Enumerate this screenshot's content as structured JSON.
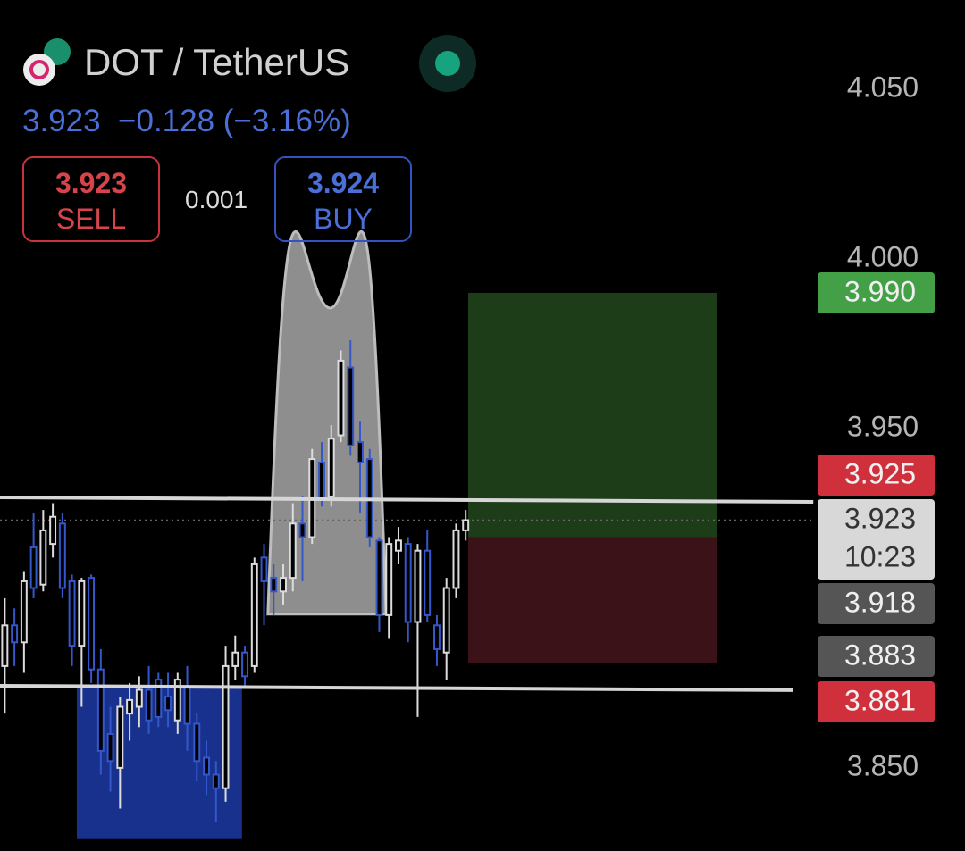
{
  "header": {
    "symbol": "DOT / TetherUS",
    "price": "3.923",
    "change": "−0.128 (−3.16%)",
    "sell_price": "3.923",
    "sell_label": "SELL",
    "spread": "0.001",
    "buy_price": "3.924",
    "buy_label": "BUY"
  },
  "chart_data": {
    "type": "candlestick",
    "x": [
      0,
      1,
      2,
      3,
      4,
      5,
      6,
      7,
      8,
      9,
      10,
      11,
      12,
      13,
      14,
      15,
      16,
      17,
      18,
      19,
      20,
      21,
      22,
      23,
      24,
      25,
      26,
      27,
      28,
      29,
      30,
      31,
      32,
      33,
      34,
      35,
      36,
      37,
      38,
      39,
      40,
      41,
      42,
      43,
      44,
      45,
      46,
      47,
      48
    ],
    "open": [
      3.88,
      3.892,
      3.887,
      3.915,
      3.904,
      3.916,
      3.922,
      3.905,
      3.886,
      3.906,
      3.879,
      3.86,
      3.85,
      3.866,
      3.868,
      3.873,
      3.876,
      3.871,
      3.864,
      3.874,
      3.863,
      3.853,
      3.848,
      3.844,
      3.88,
      3.884,
      3.88,
      3.912,
      3.906,
      3.902,
      3.906,
      3.922,
      3.918,
      3.94,
      3.93,
      3.948,
      3.968,
      3.946,
      3.941,
      3.917,
      3.895,
      3.914,
      3.916,
      3.893,
      3.914,
      3.892,
      3.884,
      3.903,
      3.92
    ],
    "high": [
      3.9,
      3.897,
      3.908,
      3.925,
      3.926,
      3.928,
      3.925,
      3.907,
      3.906,
      3.907,
      3.885,
      3.868,
      3.871,
      3.875,
      3.877,
      3.88,
      3.878,
      3.878,
      3.878,
      3.88,
      3.866,
      3.858,
      3.852,
      3.886,
      3.889,
      3.886,
      3.912,
      3.916,
      3.91,
      3.91,
      3.928,
      3.93,
      3.944,
      3.946,
      3.951,
      3.973,
      3.976,
      3.952,
      3.944,
      3.918,
      3.918,
      3.921,
      3.918,
      3.916,
      3.92,
      3.895,
      3.906,
      3.922,
      3.926
    ],
    "low": [
      3.866,
      3.88,
      3.878,
      3.9,
      3.902,
      3.912,
      3.9,
      3.88,
      3.868,
      3.875,
      3.848,
      3.843,
      3.838,
      3.858,
      3.862,
      3.86,
      3.862,
      3.862,
      3.86,
      3.855,
      3.846,
      3.842,
      3.834,
      3.84,
      3.876,
      3.874,
      3.878,
      3.892,
      3.895,
      3.898,
      3.902,
      3.905,
      3.916,
      3.927,
      3.927,
      3.946,
      3.942,
      3.925,
      3.915,
      3.89,
      3.888,
      3.91,
      3.887,
      3.865,
      3.893,
      3.88,
      3.876,
      3.9,
      3.917
    ],
    "close": [
      3.892,
      3.887,
      3.905,
      3.903,
      3.92,
      3.924,
      3.903,
      3.886,
      3.905,
      3.879,
      3.855,
      3.852,
      3.868,
      3.87,
      3.873,
      3.864,
      3.865,
      3.867,
      3.876,
      3.863,
      3.852,
      3.848,
      3.844,
      3.88,
      3.884,
      3.877,
      3.91,
      3.905,
      3.902,
      3.906,
      3.922,
      3.918,
      3.941,
      3.929,
      3.947,
      3.97,
      3.945,
      3.94,
      3.918,
      3.895,
      3.916,
      3.917,
      3.893,
      3.914,
      3.895,
      3.885,
      3.903,
      3.92,
      3.923
    ],
    "up_color": "#dcdcdc",
    "down_color": "#3457c9",
    "xlim": [
      -0.5,
      100
    ],
    "ylim": [
      3.8255,
      4.0763
    ],
    "yticks": [
      {
        "value": 3.85,
        "label": "3.850"
      },
      {
        "value": 3.95,
        "label": "3.950"
      },
      {
        "value": 4.0,
        "label": "4.000"
      },
      {
        "value": 4.05,
        "label": "4.050"
      }
    ],
    "lines": [
      {
        "x": [
          -0.5,
          84.2
        ],
        "values": [
          3.9297,
          3.9284
        ]
      },
      {
        "x": [
          -0.5,
          82.1
        ],
        "values": [
          3.8742,
          3.8729
        ]
      }
    ],
    "zone": {
      "x": [
        7.5,
        24.7
      ],
      "values": [
        3.874,
        3.829
      ],
      "color": "#1c3aa6"
    },
    "arc": {
      "x": [
        27.4,
        33.9,
        39.7
      ],
      "values": [
        3.8953,
        3.9855,
        3.8953
      ],
      "color": "#bdbdbd"
    },
    "position": {
      "x": [
        48.26,
        74.2
      ],
      "target": 3.99,
      "entry": 3.918,
      "stop": 3.881,
      "profit_color": "#1d3d19",
      "loss_color": "#3a1217"
    },
    "price_tags": [
      {
        "value": 3.99,
        "label": "3.990",
        "color": "#43a047"
      },
      {
        "value": 3.925,
        "label": "3.925",
        "color": "#d0303c"
      },
      {
        "value": 3.923,
        "label": "3.923",
        "color": "#d8d8d8",
        "countdown": "10:23"
      },
      {
        "value": 3.918,
        "label": "3.918",
        "color": "#555555"
      },
      {
        "value": 3.883,
        "label": "3.883",
        "color": "#555555"
      },
      {
        "value": 3.881,
        "label": "3.881",
        "color": "#d0303c"
      }
    ]
  }
}
